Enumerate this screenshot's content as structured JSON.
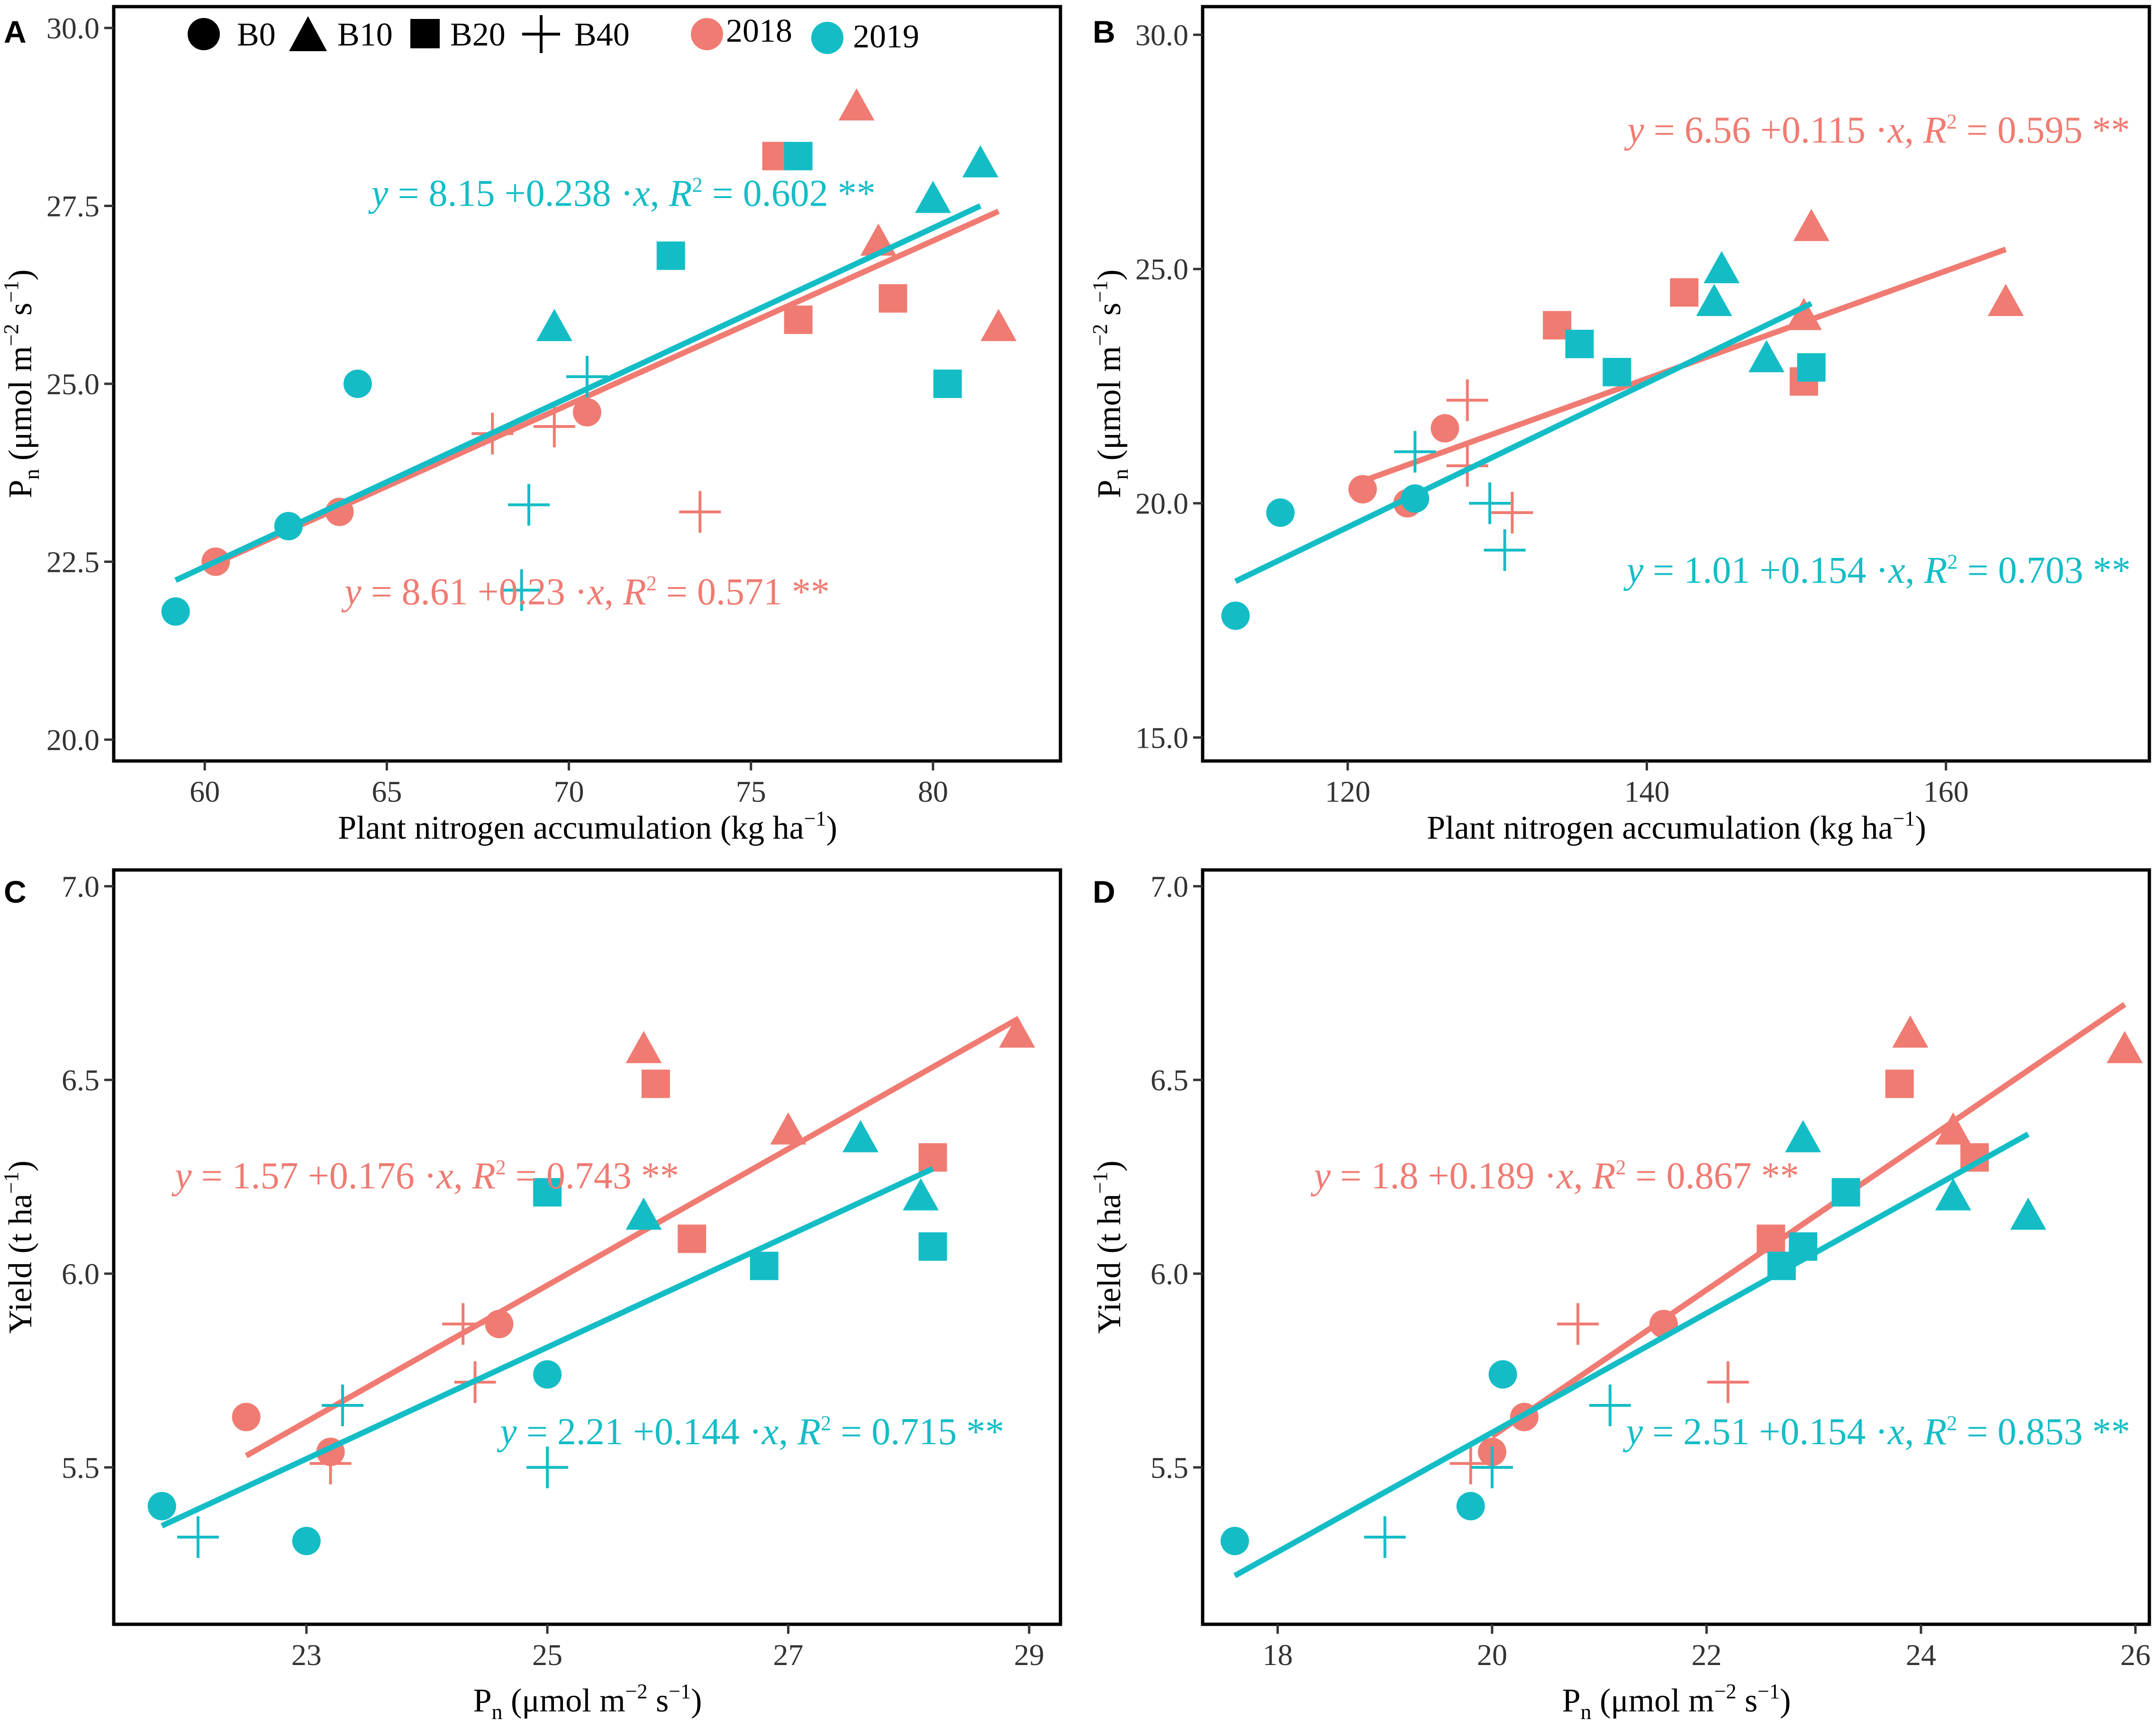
{
  "colors": {
    "y2018": "#F07B72",
    "y2019": "#14BDC6",
    "frame": "#000000",
    "tick": "#333333"
  },
  "legend": {
    "treatments": [
      {
        "label": "B0",
        "shape": "circle"
      },
      {
        "label": "B10",
        "shape": "triangle"
      },
      {
        "label": "B20",
        "shape": "square"
      },
      {
        "label": "B40",
        "shape": "plus"
      }
    ],
    "years": [
      {
        "label": "2018",
        "color_key": "y2018"
      },
      {
        "label": "2019",
        "color_key": "y2019"
      }
    ]
  },
  "chart_data": [
    {
      "panel": "A",
      "type": "scatter",
      "xlabel": "Plant nitrogen accumulation (kg ha",
      "xlabel_sup": "−1",
      "xlabel_tail": ")",
      "ylabel_main": "P",
      "ylabel_sub": "n",
      "ylabel_unit": " (μmol m",
      "ylabel_sup1": "−2",
      "ylabel_mid": " s",
      "ylabel_sup2": "−1",
      "ylabel_tail": ")",
      "xlim": [
        57.5,
        83.5
      ],
      "ylim": [
        19.7,
        30.3
      ],
      "xticks": [
        60,
        65,
        70,
        75,
        80
      ],
      "xtick_labels": [
        "60",
        "65",
        "70",
        "75",
        "80"
      ],
      "yticks": [
        20.0,
        22.5,
        25.0,
        27.5,
        30.0
      ],
      "ytick_labels": [
        "20.0",
        "22.5",
        "25.0",
        "27.5",
        "30.0"
      ],
      "series": [
        {
          "name": "2018",
          "color_key": "y2018",
          "points": [
            {
              "x": 60.3,
              "y": 22.5,
              "s": "circle"
            },
            {
              "x": 63.7,
              "y": 23.2,
              "s": "circle"
            },
            {
              "x": 70.5,
              "y": 24.6,
              "s": "circle"
            },
            {
              "x": 77.9,
              "y": 28.9,
              "s": "triangle"
            },
            {
              "x": 78.5,
              "y": 27.0,
              "s": "triangle"
            },
            {
              "x": 81.8,
              "y": 25.8,
              "s": "triangle"
            },
            {
              "x": 75.7,
              "y": 28.2,
              "s": "square"
            },
            {
              "x": 76.3,
              "y": 25.9,
              "s": "square"
            },
            {
              "x": 78.9,
              "y": 26.2,
              "s": "square"
            },
            {
              "x": 67.9,
              "y": 24.3,
              "s": "plus"
            },
            {
              "x": 69.6,
              "y": 24.4,
              "s": "plus"
            },
            {
              "x": 73.6,
              "y": 23.2,
              "s": "plus"
            }
          ],
          "fit": {
            "intercept": 8.61,
            "slope": 0.23,
            "x_range": [
              60.3,
              81.8
            ]
          }
        },
        {
          "name": "2019",
          "color_key": "y2019",
          "points": [
            {
              "x": 59.2,
              "y": 21.8,
              "s": "circle"
            },
            {
              "x": 62.3,
              "y": 23.0,
              "s": "circle"
            },
            {
              "x": 64.2,
              "y": 25.0,
              "s": "circle"
            },
            {
              "x": 69.6,
              "y": 25.8,
              "s": "triangle"
            },
            {
              "x": 80.0,
              "y": 27.6,
              "s": "triangle"
            },
            {
              "x": 81.3,
              "y": 28.1,
              "s": "triangle"
            },
            {
              "x": 72.8,
              "y": 26.8,
              "s": "square"
            },
            {
              "x": 76.3,
              "y": 28.2,
              "s": "square"
            },
            {
              "x": 80.4,
              "y": 25.0,
              "s": "square"
            },
            {
              "x": 68.9,
              "y": 23.3,
              "s": "plus"
            },
            {
              "x": 68.7,
              "y": 22.1,
              "s": "plus"
            },
            {
              "x": 70.5,
              "y": 25.1,
              "s": "plus"
            }
          ],
          "fit": {
            "intercept": 8.15,
            "slope": 0.238,
            "x_range": [
              59.2,
              81.3
            ]
          }
        }
      ],
      "annotations": [
        {
          "color_key": "y2019",
          "a": "8.15",
          "b": "0.238",
          "r2": "0.602",
          "stars": "**",
          "anchor": "middle",
          "x": 71.5,
          "y": 27.5
        },
        {
          "color_key": "y2018",
          "a": "8.61",
          "b": "0.23",
          "r2": "0.571",
          "stars": "**",
          "anchor": "middle",
          "x": 70.5,
          "y": 21.9
        }
      ]
    },
    {
      "panel": "B",
      "type": "scatter",
      "xlabel": "Plant nitrogen accumulation (kg ha",
      "xlabel_sup": "−1",
      "xlabel_tail": ")",
      "ylabel_main": "P",
      "ylabel_sub": "n",
      "ylabel_unit": " (μmol m",
      "ylabel_sup1": "−2",
      "ylabel_mid": " s",
      "ylabel_sup2": "−1",
      "ylabel_tail": ")",
      "xlim": [
        110.3,
        173.6
      ],
      "ylim": [
        14.5,
        30.6
      ],
      "xticks": [
        120,
        140,
        160
      ],
      "xtick_labels": [
        "120",
        "140",
        "160"
      ],
      "yticks": [
        15.0,
        20.0,
        25.0,
        30.0
      ],
      "ytick_labels": [
        "15.0",
        "20.0",
        "25.0",
        "30.0"
      ],
      "series": [
        {
          "name": "2018",
          "color_key": "y2018",
          "points": [
            {
              "x": 121.0,
              "y": 20.3,
              "s": "circle"
            },
            {
              "x": 124.0,
              "y": 20.0,
              "s": "circle"
            },
            {
              "x": 126.5,
              "y": 21.6,
              "s": "circle"
            },
            {
              "x": 150.5,
              "y": 24.0,
              "s": "triangle"
            },
            {
              "x": 151.0,
              "y": 25.9,
              "s": "triangle"
            },
            {
              "x": 164.0,
              "y": 24.3,
              "s": "triangle"
            },
            {
              "x": 134.0,
              "y": 23.8,
              "s": "square"
            },
            {
              "x": 142.5,
              "y": 24.5,
              "s": "square"
            },
            {
              "x": 150.5,
              "y": 22.6,
              "s": "square"
            },
            {
              "x": 128.0,
              "y": 22.2,
              "s": "plus"
            },
            {
              "x": 128.0,
              "y": 20.8,
              "s": "plus"
            },
            {
              "x": 131.0,
              "y": 19.8,
              "s": "plus"
            }
          ],
          "fit": {
            "intercept": 6.56,
            "slope": 0.115,
            "x_range": [
              121.0,
              164.0
            ]
          }
        },
        {
          "name": "2019",
          "color_key": "y2019",
          "points": [
            {
              "x": 112.5,
              "y": 17.6,
              "s": "circle"
            },
            {
              "x": 115.5,
              "y": 19.8,
              "s": "circle"
            },
            {
              "x": 124.5,
              "y": 20.1,
              "s": "circle"
            },
            {
              "x": 144.5,
              "y": 24.3,
              "s": "triangle"
            },
            {
              "x": 145.0,
              "y": 25.0,
              "s": "triangle"
            },
            {
              "x": 148.0,
              "y": 23.1,
              "s": "triangle"
            },
            {
              "x": 135.5,
              "y": 23.4,
              "s": "square"
            },
            {
              "x": 138.0,
              "y": 22.8,
              "s": "square"
            },
            {
              "x": 151.0,
              "y": 22.9,
              "s": "square"
            },
            {
              "x": 124.5,
              "y": 21.1,
              "s": "plus"
            },
            {
              "x": 129.5,
              "y": 20.0,
              "s": "plus"
            },
            {
              "x": 130.5,
              "y": 19.0,
              "s": "plus"
            }
          ],
          "fit": {
            "intercept": 1.01,
            "slope": 0.154,
            "x_range": [
              112.5,
              151.0
            ]
          }
        }
      ],
      "annotations": [
        {
          "color_key": "y2018",
          "a": "6.56",
          "b": "0.115",
          "r2": "0.595",
          "stars": "**",
          "anchor": "middle",
          "x": 155.5,
          "y": 27.7
        },
        {
          "color_key": "y2019",
          "a": "1.01",
          "b": "0.154",
          "r2": "0.703",
          "stars": "**",
          "anchor": "middle",
          "x": 155.5,
          "y": 18.3
        }
      ]
    },
    {
      "panel": "C",
      "type": "scatter",
      "xlabel": "P",
      "xlabel_sub": "n",
      "xlabel_unit": " (μmol m",
      "xlabel_sup1": "−2",
      "xlabel_mid": " s",
      "xlabel_sup2": "−1",
      "xlabel_tail": ")",
      "ylabel_text": "Yield (t ha",
      "ylabel_sup": "−1",
      "ylabel_tail": ")",
      "xlim": [
        21.4,
        29.26
      ],
      "ylim": [
        5.095,
        7.042
      ],
      "xticks": [
        23,
        25,
        27,
        29
      ],
      "xtick_labels": [
        "23",
        "25",
        "27",
        "29"
      ],
      "yticks": [
        5.5,
        6.0,
        6.5,
        7.0
      ],
      "ytick_labels": [
        "5.5",
        "6.0",
        "6.5",
        "7.0"
      ],
      "series": [
        {
          "name": "2018",
          "color_key": "y2018",
          "points": [
            {
              "x": 22.5,
              "y": 5.63,
              "s": "circle"
            },
            {
              "x": 23.2,
              "y": 5.54,
              "s": "circle"
            },
            {
              "x": 24.6,
              "y": 5.87,
              "s": "circle"
            },
            {
              "x": 25.8,
              "y": 6.58,
              "s": "triangle"
            },
            {
              "x": 27.0,
              "y": 6.37,
              "s": "triangle"
            },
            {
              "x": 28.9,
              "y": 6.62,
              "s": "triangle"
            },
            {
              "x": 25.9,
              "y": 6.49,
              "s": "square"
            },
            {
              "x": 26.2,
              "y": 6.09,
              "s": "square"
            },
            {
              "x": 28.2,
              "y": 6.3,
              "s": "square"
            },
            {
              "x": 23.2,
              "y": 5.51,
              "s": "plus"
            },
            {
              "x": 24.3,
              "y": 5.87,
              "s": "plus"
            },
            {
              "x": 24.4,
              "y": 5.72,
              "s": "plus"
            }
          ],
          "fit": {
            "intercept": 1.57,
            "slope": 0.176,
            "x_range": [
              22.5,
              28.9
            ]
          }
        },
        {
          "name": "2019",
          "color_key": "y2019",
          "points": [
            {
              "x": 21.8,
              "y": 5.4,
              "s": "circle"
            },
            {
              "x": 23.0,
              "y": 5.31,
              "s": "circle"
            },
            {
              "x": 25.0,
              "y": 5.74,
              "s": "circle"
            },
            {
              "x": 25.8,
              "y": 6.15,
              "s": "triangle"
            },
            {
              "x": 27.6,
              "y": 6.35,
              "s": "triangle"
            },
            {
              "x": 28.1,
              "y": 6.2,
              "s": "triangle"
            },
            {
              "x": 25.0,
              "y": 6.21,
              "s": "square"
            },
            {
              "x": 26.8,
              "y": 6.02,
              "s": "square"
            },
            {
              "x": 28.2,
              "y": 6.07,
              "s": "square"
            },
            {
              "x": 22.1,
              "y": 5.32,
              "s": "plus"
            },
            {
              "x": 23.3,
              "y": 5.66,
              "s": "plus"
            },
            {
              "x": 25.0,
              "y": 5.5,
              "s": "plus"
            }
          ],
          "fit": {
            "intercept": 2.21,
            "slope": 0.144,
            "x_range": [
              21.8,
              28.2
            ]
          }
        }
      ],
      "annotations": [
        {
          "color_key": "y2018",
          "a": "1.57",
          "b": "0.176",
          "r2": "0.743",
          "stars": "**",
          "anchor": "middle",
          "x": 24.0,
          "y": 6.22
        },
        {
          "color_key": "y2019",
          "a": "2.21",
          "b": "0.144",
          "r2": "0.715",
          "stars": "**",
          "anchor": "middle",
          "x": 26.7,
          "y": 5.56
        }
      ]
    },
    {
      "panel": "D",
      "type": "scatter",
      "xlabel": "P",
      "xlabel_sub": "n",
      "xlabel_unit": " (μmol m",
      "xlabel_sup1": "−2",
      "xlabel_mid": " s",
      "xlabel_sup2": "−1",
      "xlabel_tail": ")",
      "ylabel_text": "Yield (t ha",
      "ylabel_sup": "−1",
      "ylabel_tail": ")",
      "xlim": [
        17.3,
        26.13
      ],
      "ylim": [
        5.095,
        7.042
      ],
      "xticks": [
        18,
        20,
        22,
        24,
        26
      ],
      "xtick_labels": [
        "18",
        "20",
        "22",
        "24",
        "26"
      ],
      "yticks": [
        5.5,
        6.0,
        6.5,
        7.0
      ],
      "ytick_labels": [
        "5.5",
        "6.0",
        "6.5",
        "7.0"
      ],
      "series": [
        {
          "name": "2018",
          "color_key": "y2018",
          "points": [
            {
              "x": 20.0,
              "y": 5.54,
              "s": "circle"
            },
            {
              "x": 20.3,
              "y": 5.63,
              "s": "circle"
            },
            {
              "x": 21.6,
              "y": 5.87,
              "s": "circle"
            },
            {
              "x": 23.9,
              "y": 6.62,
              "s": "triangle"
            },
            {
              "x": 24.3,
              "y": 6.37,
              "s": "triangle"
            },
            {
              "x": 25.9,
              "y": 6.58,
              "s": "triangle"
            },
            {
              "x": 22.6,
              "y": 6.09,
              "s": "square"
            },
            {
              "x": 23.8,
              "y": 6.49,
              "s": "square"
            },
            {
              "x": 24.5,
              "y": 6.3,
              "s": "square"
            },
            {
              "x": 19.8,
              "y": 5.51,
              "s": "plus"
            },
            {
              "x": 20.8,
              "y": 5.87,
              "s": "plus"
            },
            {
              "x": 22.2,
              "y": 5.72,
              "s": "plus"
            }
          ],
          "fit": {
            "intercept": 1.8,
            "slope": 0.189,
            "x_range": [
              20.0,
              25.9
            ]
          }
        },
        {
          "name": "2019",
          "color_key": "y2019",
          "points": [
            {
              "x": 17.6,
              "y": 5.31,
              "s": "circle"
            },
            {
              "x": 19.8,
              "y": 5.4,
              "s": "circle"
            },
            {
              "x": 20.1,
              "y": 5.74,
              "s": "circle"
            },
            {
              "x": 22.9,
              "y": 6.35,
              "s": "triangle"
            },
            {
              "x": 24.3,
              "y": 6.2,
              "s": "triangle"
            },
            {
              "x": 25.0,
              "y": 6.15,
              "s": "triangle"
            },
            {
              "x": 22.7,
              "y": 6.02,
              "s": "square"
            },
            {
              "x": 22.9,
              "y": 6.07,
              "s": "square"
            },
            {
              "x": 23.3,
              "y": 6.21,
              "s": "square"
            },
            {
              "x": 19.0,
              "y": 5.32,
              "s": "plus"
            },
            {
              "x": 20.0,
              "y": 5.5,
              "s": "plus"
            },
            {
              "x": 21.1,
              "y": 5.66,
              "s": "plus"
            }
          ],
          "fit": {
            "intercept": 2.51,
            "slope": 0.154,
            "x_range": [
              17.6,
              25.0
            ]
          }
        }
      ],
      "annotations": [
        {
          "color_key": "y2018",
          "a": "1.8",
          "b": "0.189",
          "r2": "0.867",
          "stars": "**",
          "anchor": "middle",
          "x": 20.6,
          "y": 6.22
        },
        {
          "color_key": "y2019",
          "a": "2.51",
          "b": "0.154",
          "r2": "0.853",
          "stars": "**",
          "anchor": "middle",
          "x": 23.6,
          "y": 5.56
        }
      ]
    }
  ]
}
